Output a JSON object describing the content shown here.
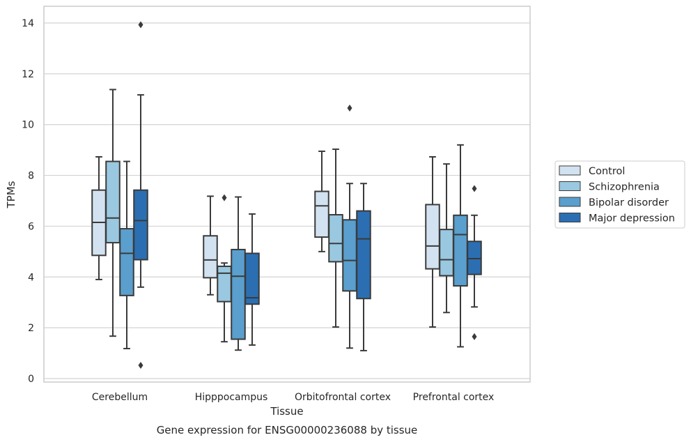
{
  "chart_data": {
    "type": "box",
    "title": "",
    "caption": "Gene expression for ENSG00000236088 by tissue",
    "xlabel": "Tissue",
    "ylabel": "TPMs",
    "ylim": [
      -0.1,
      14.6
    ],
    "yticks": [
      0,
      2,
      4,
      6,
      8,
      10,
      12,
      14
    ],
    "grid": "horizontal",
    "legend_position": "right",
    "categories": [
      "Cerebellum",
      "Hipppocampus",
      "Orbitofrontal cortex",
      "Prefrontal cortex"
    ],
    "series": [
      {
        "name": "Control",
        "color": "#d2e2f1",
        "boxes": [
          {
            "whisker_low": 3.9,
            "q1": 4.85,
            "median": 6.15,
            "q3": 7.42,
            "whisker_high": 8.73,
            "outliers": []
          },
          {
            "whisker_low": 3.3,
            "q1": 3.97,
            "median": 4.67,
            "q3": 5.62,
            "whisker_high": 7.18,
            "outliers": []
          },
          {
            "whisker_low": 5.0,
            "q1": 5.57,
            "median": 6.8,
            "q3": 7.37,
            "whisker_high": 8.95,
            "outliers": []
          },
          {
            "whisker_low": 2.03,
            "q1": 4.32,
            "median": 5.22,
            "q3": 6.85,
            "whisker_high": 8.73,
            "outliers": []
          }
        ]
      },
      {
        "name": "Schizophrenia",
        "color": "#9ac8e0",
        "boxes": [
          {
            "whisker_low": 1.67,
            "q1": 5.35,
            "median": 6.32,
            "q3": 8.55,
            "whisker_high": 11.38,
            "outliers": []
          },
          {
            "whisker_low": 1.45,
            "q1": 3.03,
            "median": 4.15,
            "q3": 4.42,
            "whisker_high": 4.55,
            "outliers": [
              7.12
            ]
          },
          {
            "whisker_low": 2.03,
            "q1": 4.6,
            "median": 5.32,
            "q3": 6.45,
            "whisker_high": 9.03,
            "outliers": []
          },
          {
            "whisker_low": 2.6,
            "q1": 4.05,
            "median": 4.68,
            "q3": 5.87,
            "whisker_high": 8.45,
            "outliers": []
          }
        ]
      },
      {
        "name": "Bipolar disorder",
        "color": "#5a9fcd",
        "boxes": [
          {
            "whisker_low": 1.18,
            "q1": 3.27,
            "median": 4.93,
            "q3": 5.9,
            "whisker_high": 8.55,
            "outliers": []
          },
          {
            "whisker_low": 1.12,
            "q1": 1.55,
            "median": 4.03,
            "q3": 5.08,
            "whisker_high": 7.15,
            "outliers": []
          },
          {
            "whisker_low": 1.2,
            "q1": 3.45,
            "median": 4.65,
            "q3": 6.25,
            "whisker_high": 7.68,
            "outliers": [
              10.65
            ]
          },
          {
            "whisker_low": 1.25,
            "q1": 3.65,
            "median": 5.67,
            "q3": 6.43,
            "whisker_high": 9.2,
            "outliers": []
          }
        ]
      },
      {
        "name": "Major depression",
        "color": "#2b6fb2",
        "boxes": [
          {
            "whisker_low": 3.6,
            "q1": 4.68,
            "median": 6.22,
            "q3": 7.42,
            "whisker_high": 11.17,
            "outliers": [
              13.93,
              0.52
            ]
          },
          {
            "whisker_low": 1.32,
            "q1": 2.93,
            "median": 3.18,
            "q3": 4.93,
            "whisker_high": 6.48,
            "outliers": []
          },
          {
            "whisker_low": 1.1,
            "q1": 3.15,
            "median": 5.5,
            "q3": 6.6,
            "whisker_high": 7.68,
            "outliers": []
          },
          {
            "whisker_low": 2.82,
            "q1": 4.1,
            "median": 4.72,
            "q3": 5.4,
            "whisker_high": 6.43,
            "outliers": [
              7.48,
              1.65
            ]
          }
        ]
      }
    ]
  }
}
